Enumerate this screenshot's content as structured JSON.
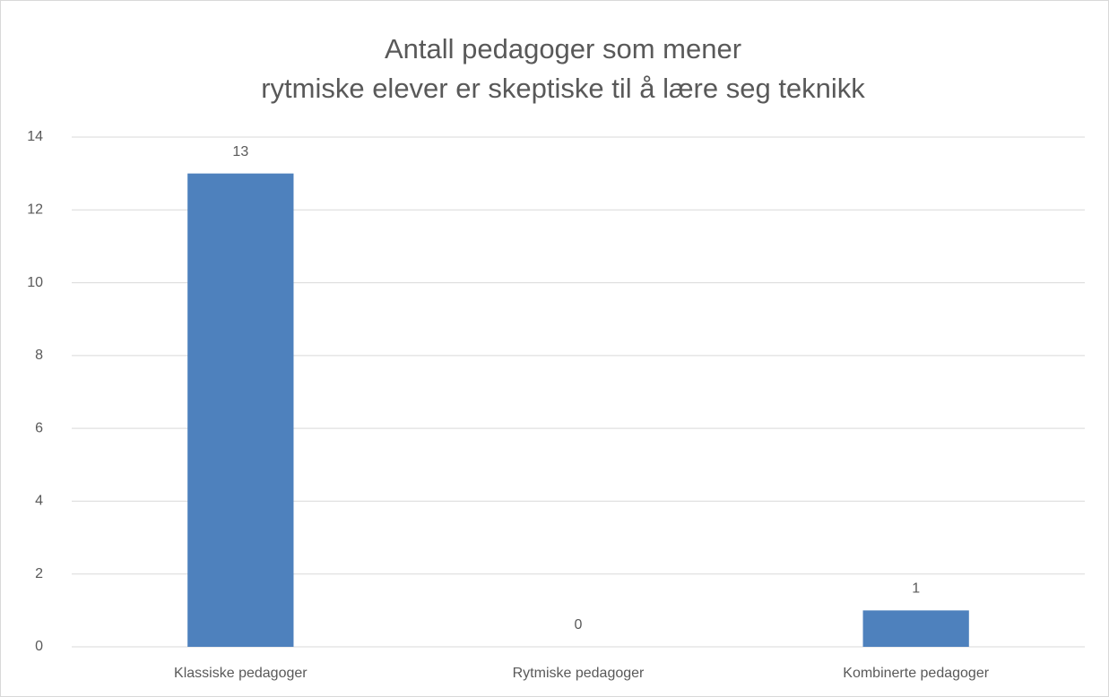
{
  "chart_data": {
    "type": "bar",
    "title": [
      "Antall pedagoger som mener",
      "rytmiske elever er skeptiske til å lære seg teknikk"
    ],
    "categories": [
      "Klassiske pedagoger",
      "Rytmiske pedagoger",
      "Kombinerte pedagoger"
    ],
    "values": [
      13,
      0,
      1
    ],
    "color": "#4e81bd",
    "ylim": [
      0,
      14
    ],
    "yticks": [
      0,
      2,
      4,
      6,
      8,
      10,
      12,
      14
    ],
    "grid": true
  }
}
